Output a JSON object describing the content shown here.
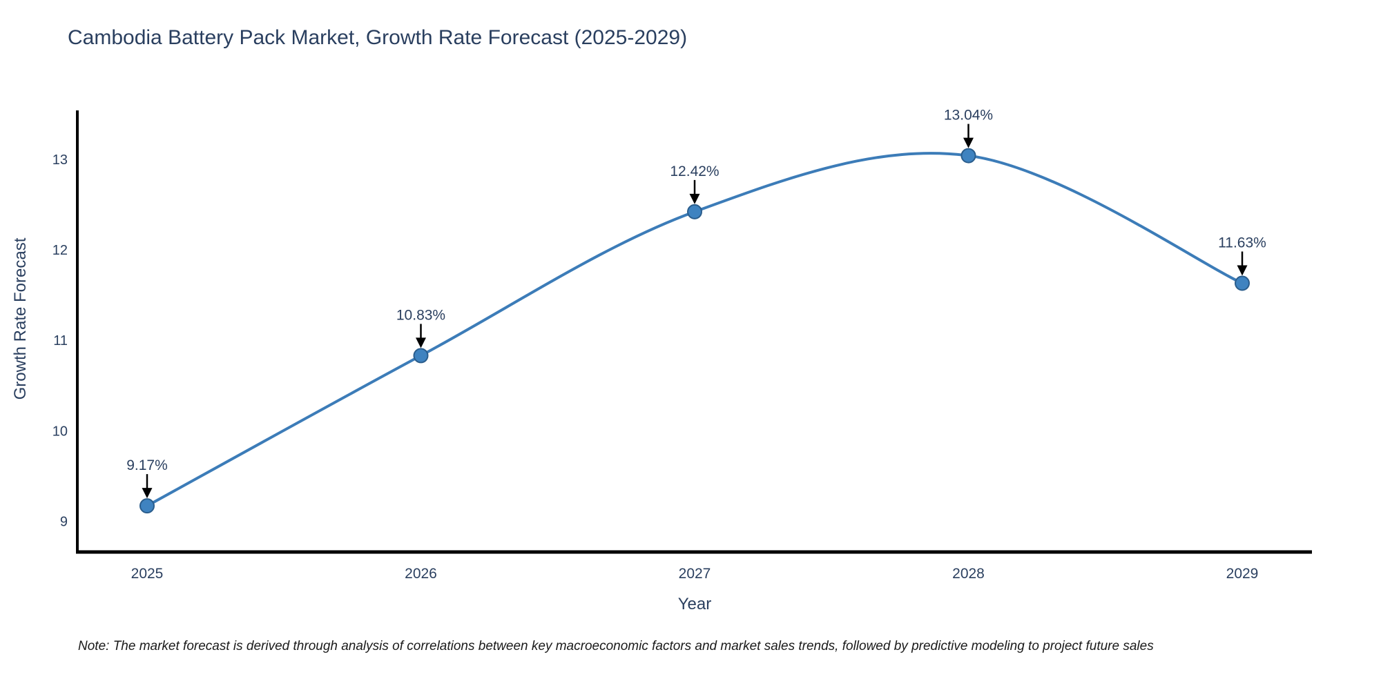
{
  "chart_data": {
    "type": "line",
    "title": "Cambodia Battery Pack Market, Growth Rate Forecast (2025-2029)",
    "xlabel": "Year",
    "ylabel": "Growth Rate Forecast",
    "categories": [
      "2025",
      "2026",
      "2027",
      "2028",
      "2029"
    ],
    "series": [
      {
        "name": "Growth Rate Forecast",
        "values": [
          9.17,
          10.83,
          12.42,
          13.04,
          11.63
        ],
        "labels": [
          "9.17%",
          "10.83%",
          "12.42%",
          "13.04%",
          "11.63%"
        ]
      }
    ],
    "y_ticks": [
      9,
      10,
      11,
      12,
      13
    ],
    "ylim": [
      8.66,
      13.54
    ],
    "grid": false,
    "legend": "none",
    "line_shape": "spline",
    "colors": {
      "line": "#3c7cb8",
      "marker_fill": "#3f83c0",
      "marker_edge": "#2a5d8c",
      "axis_line": "#000000",
      "text": "#2a3f5f",
      "annotation_arrow": "#000000"
    }
  },
  "note": {
    "text": "Note: The market forecast is derived through analysis of correlations between key macroeconomic factors and market sales trends, followed by predictive modeling to project future sales"
  }
}
